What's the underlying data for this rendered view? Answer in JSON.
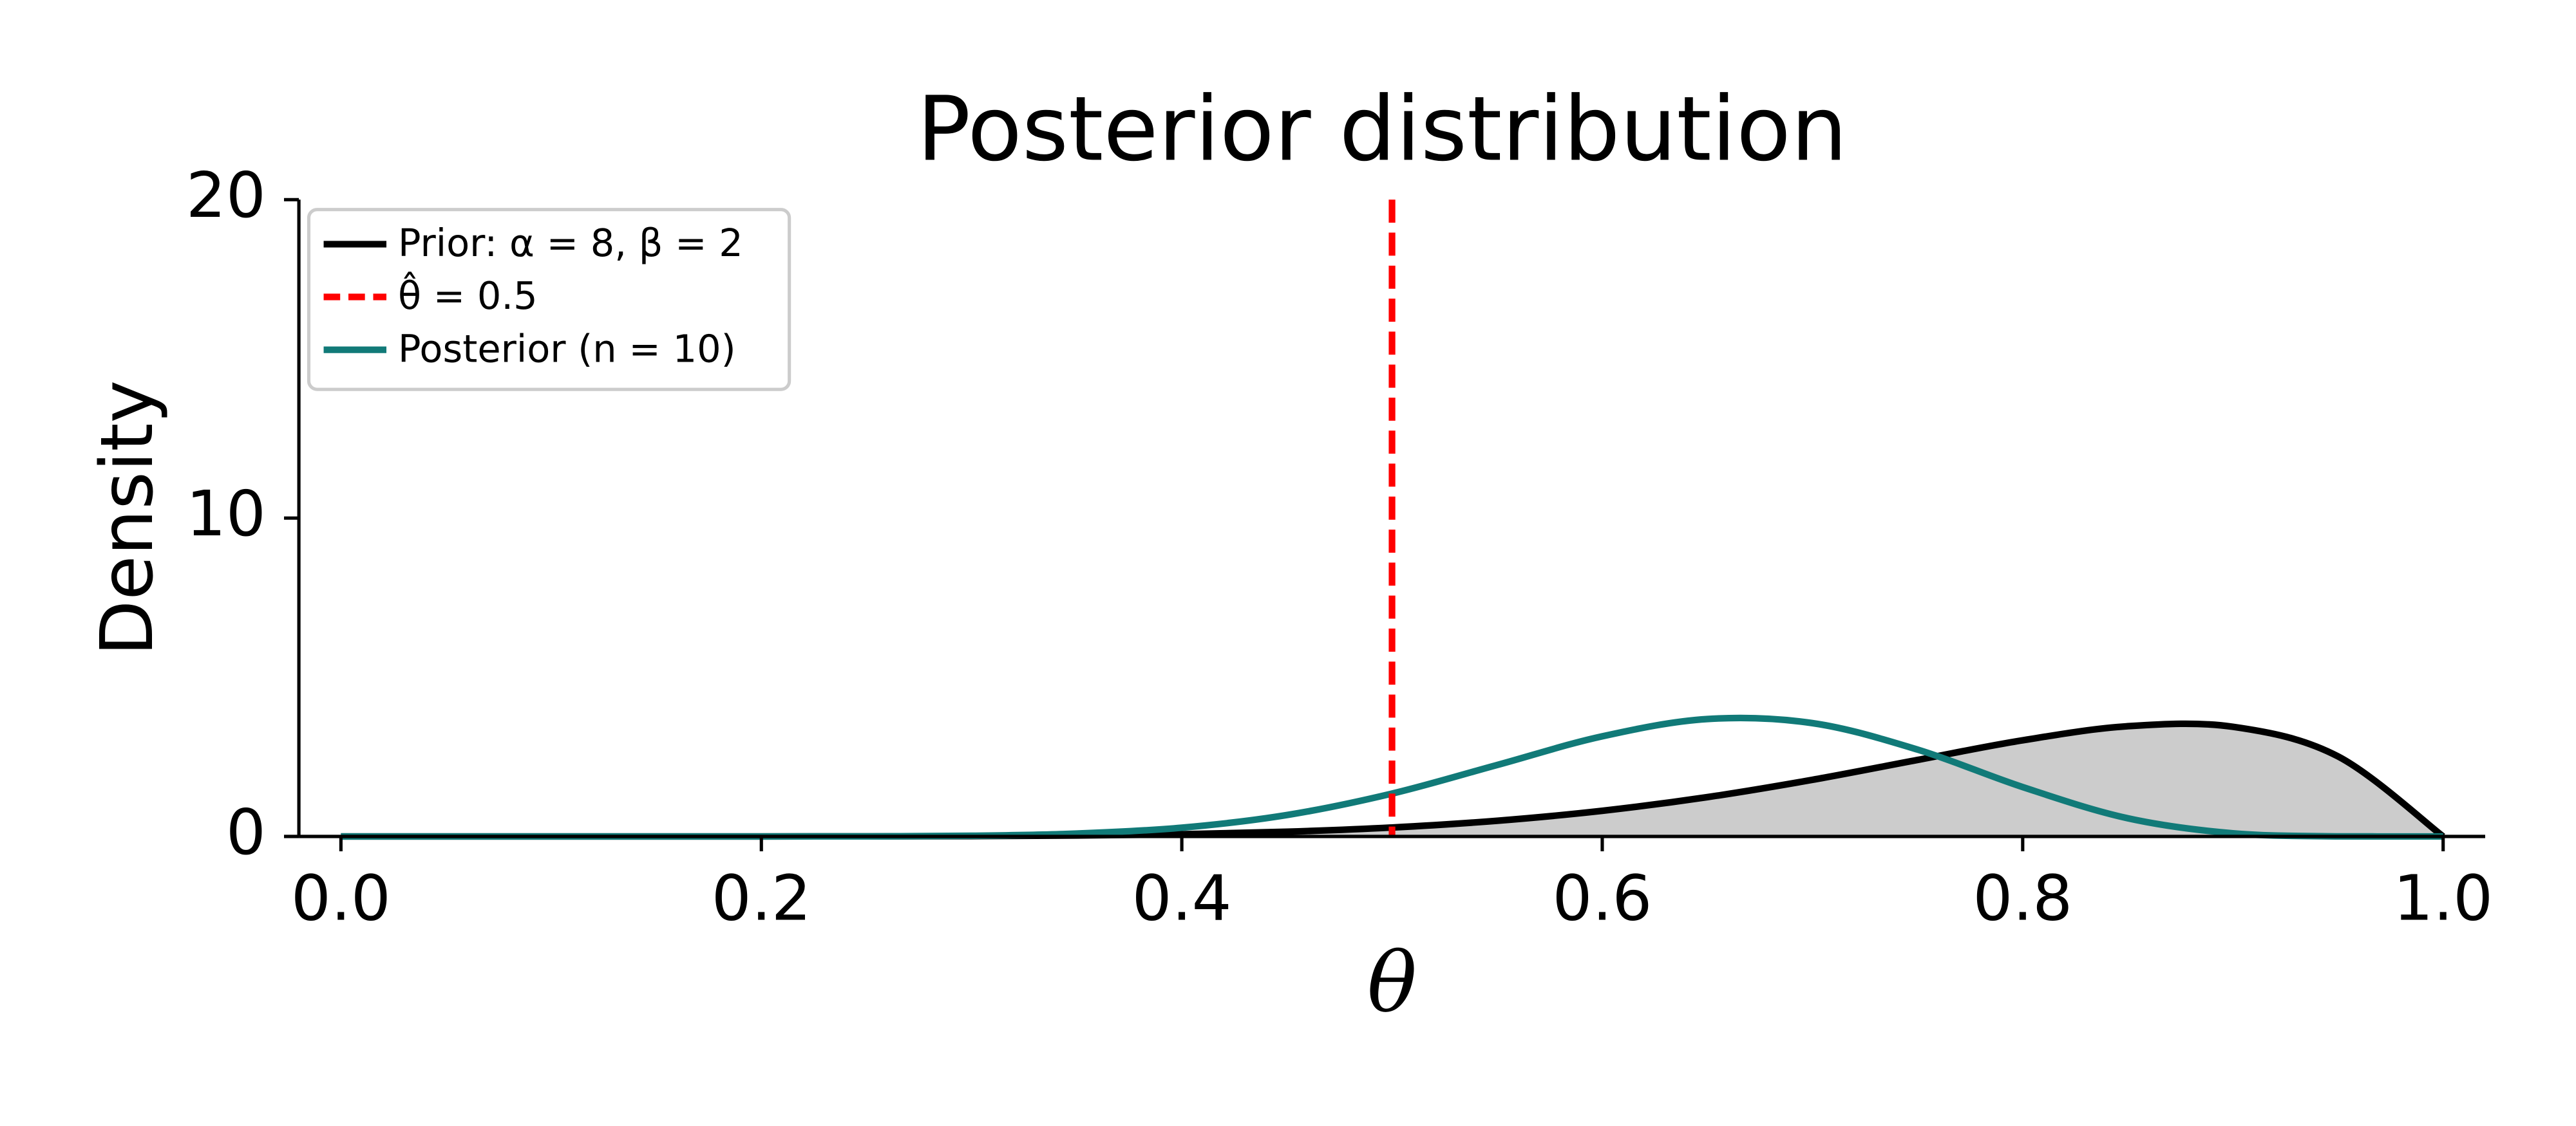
{
  "chart_data": {
    "type": "line",
    "title": "Posterior distribution",
    "xlabel": "θ",
    "ylabel": "Density",
    "x": [
      0,
      0.05,
      0.1,
      0.15,
      0.2,
      0.25,
      0.3,
      0.35,
      0.4,
      0.45,
      0.5,
      0.55,
      0.6,
      0.65,
      0.7,
      0.75,
      0.8,
      0.85,
      0.9,
      0.95,
      1
    ],
    "series": [
      {
        "name": "Prior: α = 8, β = 2",
        "color": "#000000",
        "fill": "#cccccc",
        "values": [
          0,
          0,
          0,
          0.0001,
          0.0007,
          0.0033,
          0.011,
          0.03,
          0.071,
          0.148,
          0.281,
          0.493,
          0.806,
          1.235,
          1.779,
          2.403,
          3.02,
          3.462,
          3.444,
          2.514,
          0
        ]
      },
      {
        "name": "Posterior (n = 10)",
        "color": "#117a78",
        "values": [
          0,
          0,
          0,
          0,
          0.0004,
          0.0037,
          0.022,
          0.09,
          0.276,
          0.673,
          1.346,
          2.244,
          3.145,
          3.688,
          3.559,
          2.728,
          1.551,
          0.571,
          0.0996,
          0.003,
          0
        ]
      }
    ],
    "vline": {
      "name": "θ̂ = 0.5",
      "x": 0.5,
      "color": "#ff0000"
    },
    "xlim": [
      -0.02,
      1.02
    ],
    "ylim": [
      0,
      20
    ],
    "xticks": [
      {
        "value": 0,
        "label": "0.0"
      },
      0.2,
      0.4,
      0.6,
      0.8,
      {
        "value": 1,
        "label": "1.0"
      }
    ],
    "yticks": [
      0,
      10,
      20
    ],
    "legend": "upper left"
  }
}
